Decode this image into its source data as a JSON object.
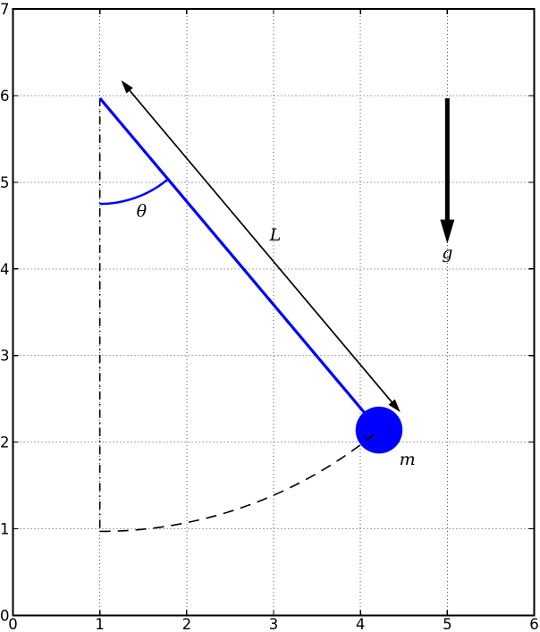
{
  "figure": {
    "bg_color": "#ffffff",
    "spine_color": "#000000",
    "grid_color": "#555555",
    "tick_color": "#000000"
  },
  "chart_data": {
    "type": "diagram",
    "title": "",
    "xlabel": "",
    "ylabel": "",
    "xlim": [
      0,
      6
    ],
    "ylim": [
      0,
      7
    ],
    "x_tick_labels": [
      "0",
      "1",
      "2",
      "3",
      "4",
      "5",
      "6"
    ],
    "y_tick_labels": [
      "0",
      "1",
      "2",
      "3",
      "4",
      "5",
      "6",
      "7"
    ],
    "grid": true,
    "grid_style": "dotted",
    "colors": {
      "pendulum": "#0000ff",
      "annotation": "#000000"
    },
    "pendulum": {
      "pivot": [
        1.0,
        5.97
      ],
      "rod_length": 5.0,
      "angle_from_vertical_deg": 40,
      "bob_center": [
        4.214,
        2.14
      ],
      "bob_radius": 0.27,
      "theta_arc_radius": 1.22,
      "length_arrow_offset": 0.32,
      "vertical_reference": {
        "from": [
          1.0,
          5.97
        ],
        "to": [
          1.0,
          0.97
        ],
        "style": "dashdot"
      },
      "swing_arc": {
        "center": [
          1.0,
          5.97
        ],
        "radius": 5.0,
        "from_deg": 0,
        "to_deg": 40,
        "style": "dashed"
      },
      "gravity_arrow": {
        "x": 5.0,
        "y_from": 5.97,
        "y_to": 4.29
      }
    },
    "labels": [
      {
        "name": "theta-label",
        "text": "θ",
        "x": 1.48,
        "y": 4.6
      },
      {
        "name": "length-label",
        "text": "L",
        "x": 3.02,
        "y": 4.33
      },
      {
        "name": "mass-label",
        "text": "m",
        "x": 4.54,
        "y": 1.74
      },
      {
        "name": "gravity-label",
        "text": "g",
        "x": 5.0,
        "y": 4.12
      }
    ]
  }
}
